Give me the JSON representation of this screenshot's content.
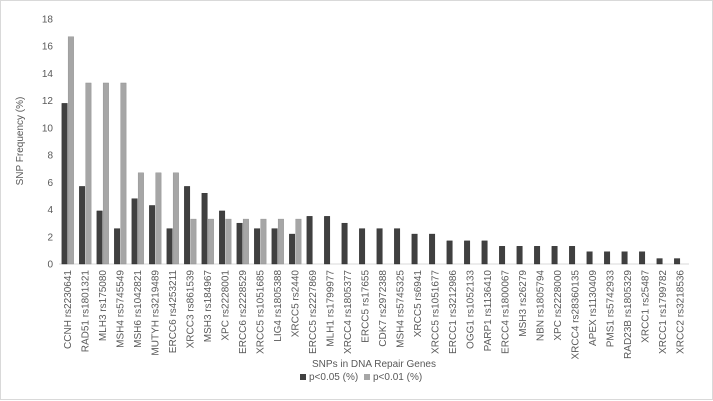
{
  "chart_data": {
    "type": "bar",
    "title": "",
    "xlabel": "SNPs in DNA Repair Genes",
    "ylabel": "SNP Frequency (%)",
    "ylim": [
      0,
      18
    ],
    "yticks": [
      0,
      2,
      4,
      6,
      8,
      10,
      12,
      14,
      16,
      18
    ],
    "grid": false,
    "legend_position": "bottom",
    "categories": [
      "CCNH rs2230641",
      "RAD51 rs1801321",
      "MLH3 rs175080",
      "MSH4 rs5745549",
      "MSH6 rs1042821",
      "MUTYH rs3219489",
      "ERCC6 rs4253211",
      "XRCC3 rs861539",
      "MSH3 rs184967",
      "XPC rs2228001",
      "ERCC6 rs2228529",
      "XRCC5 rs1051685",
      "LIG4 rs1805388",
      "XRCC5 rs2440",
      "ERCC5 rs2227869",
      "MLH1 rs1799977",
      "XRCC4 rs1805377",
      "ERCC5 rs17655",
      "CDK7 rs2972388",
      "MSH4 rs5745325",
      "XRCC5 rs6941",
      "XRCC5 rs1051677",
      "ERCC1 rs3212986",
      "OGG1 rs1052133",
      "PARP1 rs1136410",
      "ERCC4 rs1800067",
      "MSH3 rs26279",
      "NBN rs1805794",
      "XPC rs2228000",
      "XRCC4 rs28360135",
      "APEX rs1130409",
      "PMS1 rs5742933",
      "RAD23B rs1805329",
      "XRCC1 rs25487",
      "XRCC1 rs1799782",
      "XRCC2 rs3218536"
    ],
    "series": [
      {
        "name": "p<0.05 (%)",
        "color": "#404040",
        "values": [
          11.8,
          5.7,
          3.9,
          2.6,
          4.8,
          4.3,
          2.6,
          5.7,
          5.2,
          3.9,
          3.0,
          2.6,
          2.6,
          2.2,
          3.5,
          3.5,
          3.0,
          2.6,
          2.6,
          2.6,
          2.2,
          2.2,
          1.7,
          1.7,
          1.7,
          1.3,
          1.3,
          1.3,
          1.3,
          1.3,
          0.9,
          0.9,
          0.9,
          0.9,
          0.4,
          0.4
        ]
      },
      {
        "name": "p<0.01 (%)",
        "color": "#a6a6a6",
        "values": [
          16.7,
          13.3,
          13.3,
          13.3,
          6.7,
          6.7,
          6.7,
          3.3,
          3.3,
          3.3,
          3.3,
          3.3,
          3.3,
          3.3,
          null,
          null,
          null,
          null,
          null,
          null,
          null,
          null,
          null,
          null,
          null,
          null,
          null,
          null,
          null,
          null,
          null,
          null,
          null,
          null,
          null,
          null
        ]
      }
    ]
  }
}
